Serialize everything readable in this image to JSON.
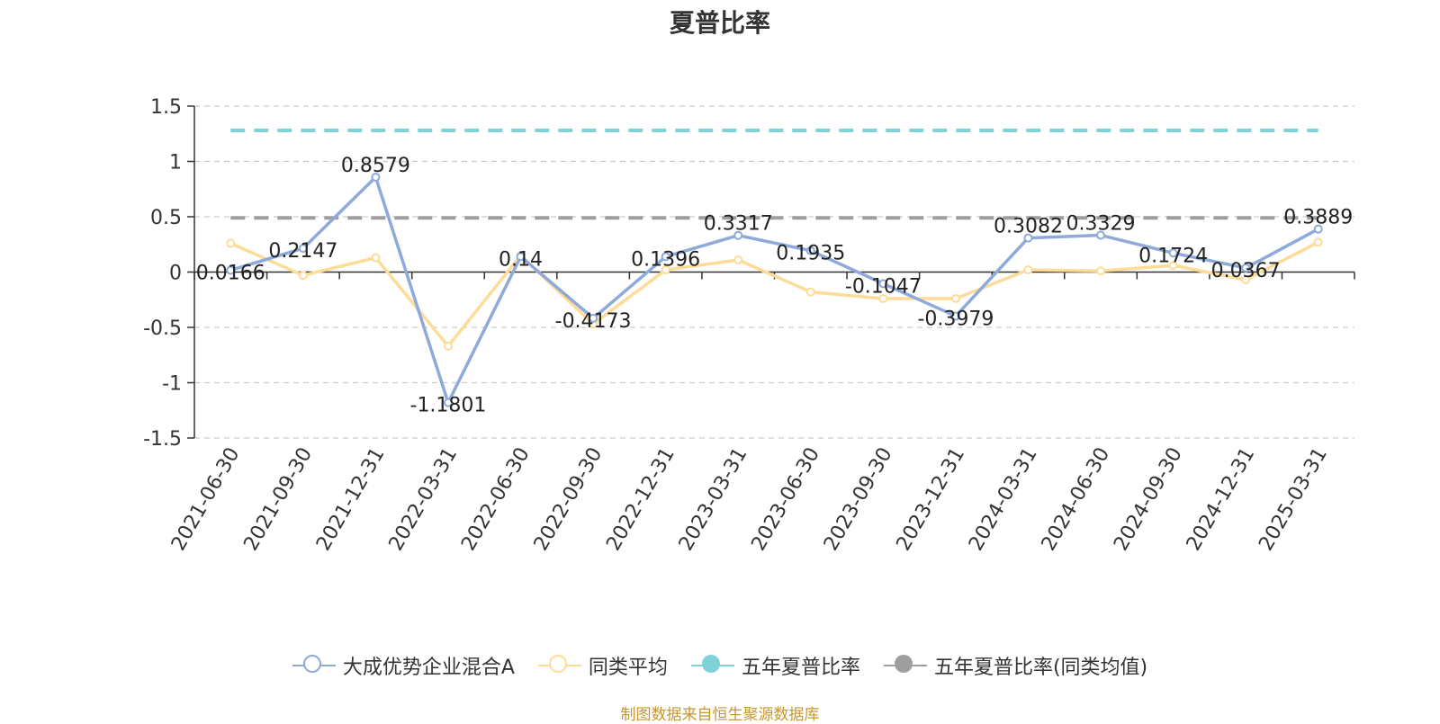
{
  "chart_data": {
    "type": "line",
    "title": "夏普比率",
    "categories": [
      "2021-06-30",
      "2021-09-30",
      "2021-12-31",
      "2022-03-31",
      "2022-06-30",
      "2022-09-30",
      "2022-12-31",
      "2023-03-31",
      "2023-06-30",
      "2023-09-30",
      "2023-12-31",
      "2024-03-31",
      "2024-06-30",
      "2024-09-30",
      "2024-12-31",
      "2025-03-31"
    ],
    "yticks": [
      "1.5",
      "1",
      "0.5",
      "0",
      "-0.5",
      "-1",
      "-1.5"
    ],
    "ylim": [
      -1.5,
      1.5
    ],
    "grid": true,
    "legend_position": "bottom",
    "series": [
      {
        "name": "大成优势企业混合A",
        "color": "#8eaadb",
        "labeled": true,
        "values": [
          0.0166,
          0.2147,
          0.8579,
          -1.1801,
          0.14,
          -0.4173,
          0.1396,
          0.3317,
          0.1935,
          -0.1047,
          -0.3979,
          0.3082,
          0.3329,
          0.1724,
          0.0367,
          0.3889
        ],
        "labels": [
          "0.0166",
          "0.2147",
          "0.8579",
          "-1.1801",
          "0.14",
          "-0.4173",
          "0.1396",
          "0.3317",
          "0.1935",
          "-0.1047",
          "-0.3979",
          "0.3082",
          "0.3329",
          "0.1724",
          "0.0367",
          "0.3889"
        ]
      },
      {
        "name": "同类平均",
        "color": "#fddc9a",
        "labeled": false,
        "values": [
          0.26,
          -0.03,
          0.13,
          -0.67,
          0.15,
          -0.47,
          0.02,
          0.11,
          -0.18,
          -0.24,
          -0.24,
          0.02,
          0.01,
          0.06,
          -0.07,
          0.27
        ]
      },
      {
        "name": "五年夏普比率",
        "color": "#7fd3d6",
        "reference": 1.28
      },
      {
        "name": "五年夏普比率(同类均值)",
        "color": "#9e9e9e",
        "reference": 0.49
      }
    ]
  },
  "legend": [
    {
      "label": "大成优势企业混合A",
      "color": "#8eaadb",
      "symbol": "hollow-circle"
    },
    {
      "label": "同类平均",
      "color": "#fddc9a",
      "symbol": "hollow-circle"
    },
    {
      "label": "五年夏普比率",
      "color": "#7fd3d6",
      "symbol": "filled-circle"
    },
    {
      "label": "五年夏普比率(同类均值)",
      "color": "#9e9e9e",
      "symbol": "filled-circle"
    }
  ],
  "source_note": "制图数据来自恒生聚源数据库"
}
